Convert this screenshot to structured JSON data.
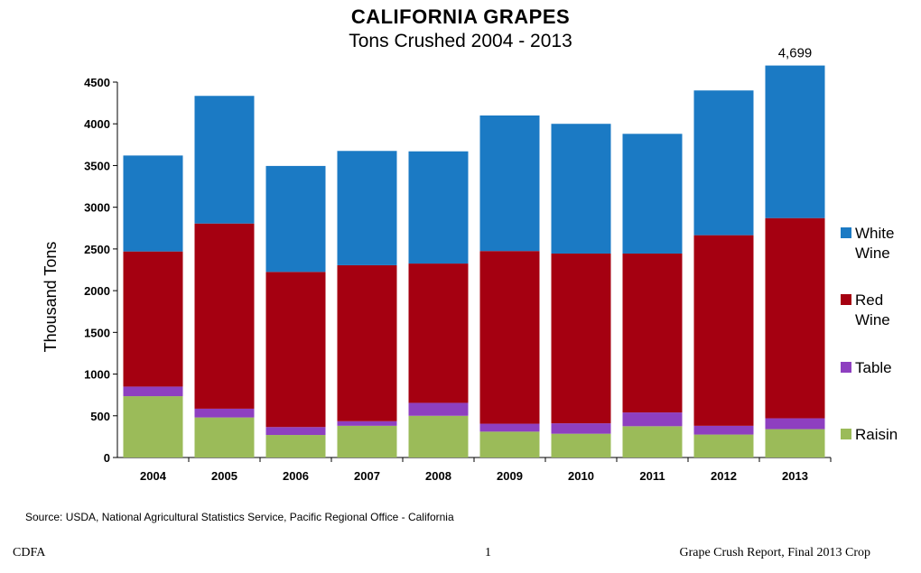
{
  "chart_data": {
    "type": "bar",
    "stacked": true,
    "title": "CALIFORNIA GRAPES",
    "subtitle": "Tons Crushed  2004 - 2013",
    "ylabel": "Thousand Tons",
    "xlabel": "",
    "ylim": [
      0,
      4500
    ],
    "yticks": [
      0,
      500,
      1000,
      1500,
      2000,
      2500,
      3000,
      3500,
      4000,
      4500
    ],
    "categories": [
      "2004",
      "2005",
      "2006",
      "2007",
      "2008",
      "2009",
      "2010",
      "2011",
      "2012",
      "2013"
    ],
    "series": [
      {
        "name": "Raisin",
        "color": "#9bbb59",
        "values": [
          735,
          480,
          270,
          380,
          500,
          310,
          285,
          375,
          275,
          340
        ]
      },
      {
        "name": "Table",
        "color": "#8e3fc0",
        "values": [
          115,
          105,
          95,
          55,
          155,
          95,
          125,
          165,
          105,
          130
        ]
      },
      {
        "name": "Red Wine",
        "color": "#a50011",
        "values": [
          1620,
          2220,
          1860,
          1870,
          1670,
          2070,
          2035,
          1905,
          2285,
          2400
        ]
      },
      {
        "name": "White Wine",
        "color": "#1b7ac4",
        "values": [
          1150,
          1530,
          1270,
          1370,
          1345,
          1625,
          1555,
          1435,
          1735,
          1829
        ]
      }
    ],
    "annotation": {
      "category": "2013",
      "text": "4,699"
    },
    "legend_position": "right",
    "grid": false
  },
  "source": "Source: USDA, National Agricultural Statistics Service, Pacific Regional Office - California",
  "footer": {
    "left": "CDFA",
    "center": "1",
    "right": "Grape Crush Report, Final 2013 Crop"
  }
}
